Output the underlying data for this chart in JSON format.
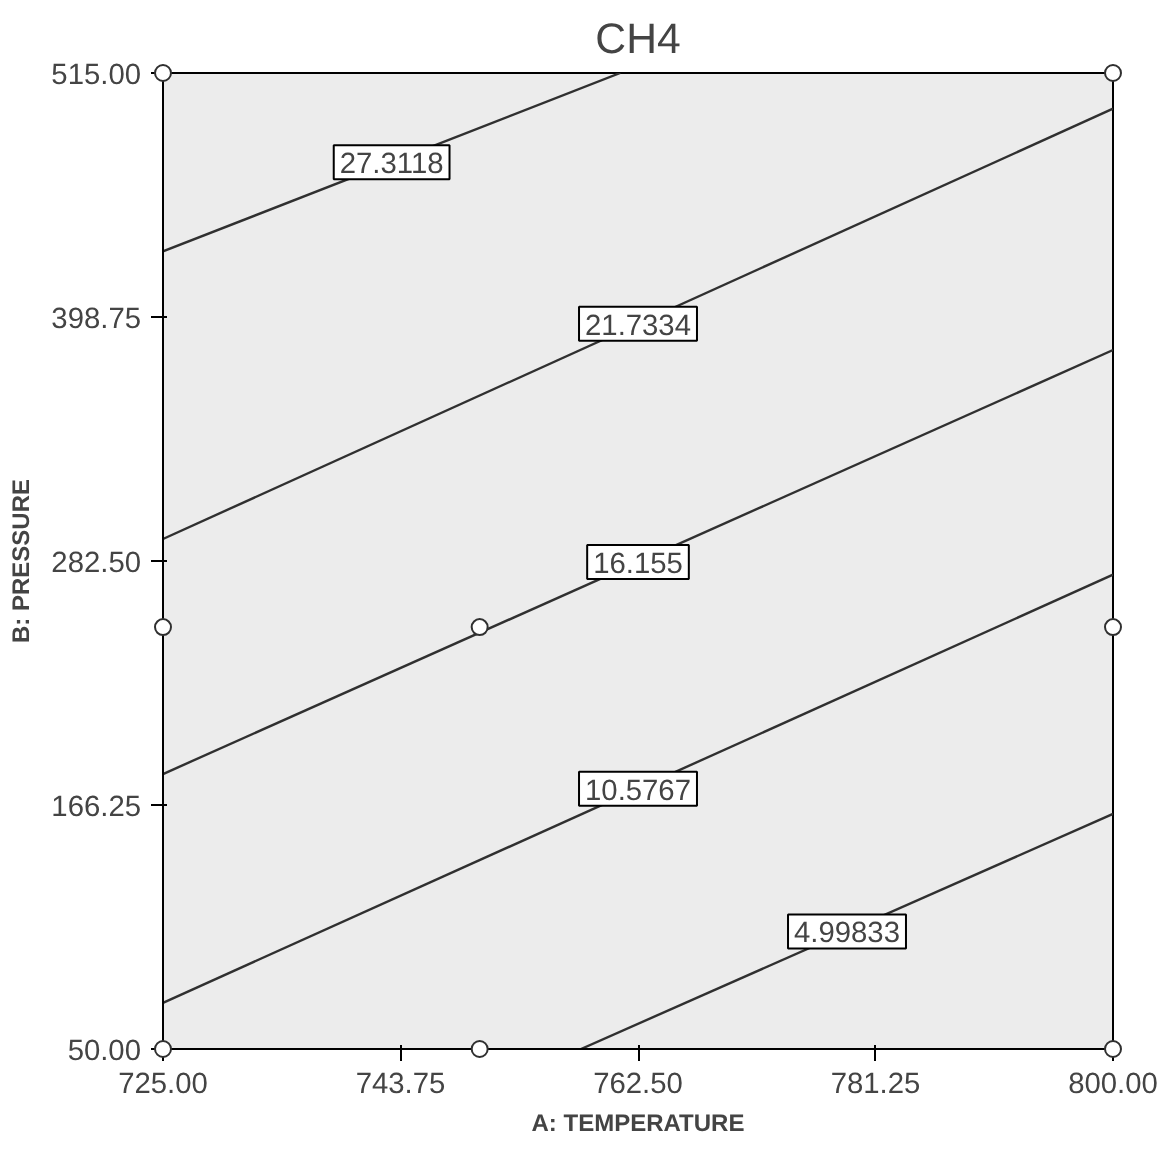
{
  "chart_data": {
    "type": "line",
    "title": "CH4",
    "xlabel": "A: TEMPERATURE",
    "ylabel": "B: PRESSURE",
    "xlim": [
      725,
      800
    ],
    "ylim": [
      50,
      515
    ],
    "xticks": [
      {
        "value": 725,
        "label": "725.00"
      },
      {
        "value": 743.75,
        "label": "743.75"
      },
      {
        "value": 762.5,
        "label": "762.50"
      },
      {
        "value": 781.25,
        "label": "781.25"
      },
      {
        "value": 800,
        "label": "800.00"
      }
    ],
    "yticks": [
      {
        "value": 50,
        "label": "50.00"
      },
      {
        "value": 166.25,
        "label": "166.25"
      },
      {
        "value": 282.5,
        "label": "282.50"
      },
      {
        "value": 398.75,
        "label": "398.75"
      },
      {
        "value": 515,
        "label": "515.00"
      }
    ],
    "grid": false,
    "line_style": "solid",
    "marker": "none",
    "series": [
      {
        "name": "27.3118",
        "color": "#303030",
        "x": [
          725,
          761.1
        ],
        "values": [
          430,
          515
        ]
      },
      {
        "name": "21.7334",
        "color": "#303030",
        "x": [
          725,
          800
        ],
        "values": [
          293,
          498
        ]
      },
      {
        "name": "16.155",
        "color": "#303030",
        "x": [
          725,
          800
        ],
        "values": [
          181,
          383
        ]
      },
      {
        "name": "10.5767",
        "color": "#303030",
        "x": [
          725,
          800
        ],
        "values": [
          72,
          276
        ]
      },
      {
        "name": "4.99833",
        "color": "#303030",
        "x": [
          758,
          800
        ],
        "values": [
          50,
          162
        ]
      },
      {
        "type": "scatter",
        "marker": "circle",
        "color": "#303030",
        "x": [
          725,
          725,
          800,
          800,
          725,
          750,
          800,
          750
        ],
        "values": [
          50,
          515,
          50,
          515,
          251,
          251,
          251,
          50
        ]
      }
    ]
  }
}
